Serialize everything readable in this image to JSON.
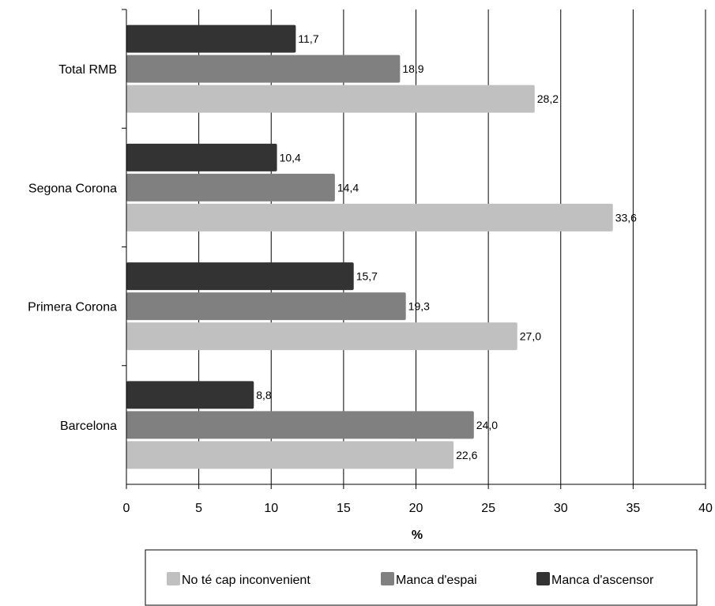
{
  "chart_data": {
    "type": "bar",
    "orientation": "horizontal",
    "categories": [
      "Total RMB",
      "Segona Corona",
      "Primera Corona",
      "Barcelona"
    ],
    "series": [
      {
        "name": "Manca d'ascensor",
        "color": "#333333",
        "values": [
          11.7,
          10.4,
          15.7,
          8.8
        ],
        "labels": [
          "11,7",
          "10,4",
          "15,7",
          "8,8"
        ]
      },
      {
        "name": "Manca d'espai",
        "color": "#808080",
        "values": [
          18.9,
          14.4,
          19.3,
          24.0
        ],
        "labels": [
          "18,9",
          "14,4",
          "19,3",
          "24,0"
        ]
      },
      {
        "name": "No té cap inconvenient",
        "color": "#c0c0c0",
        "values": [
          28.2,
          33.6,
          27.0,
          22.6
        ],
        "labels": [
          "28,2",
          "33,6",
          "27,0",
          "22,6"
        ]
      }
    ],
    "xlabel": "%",
    "xlim": [
      0,
      40
    ],
    "xticks": [
      0,
      5,
      10,
      15,
      20,
      25,
      30,
      35,
      40
    ],
    "grid": "vertical",
    "legend": {
      "placement": "bottom",
      "order": [
        "No té cap inconvenient",
        "Manca d'espai",
        "Manca d'ascensor"
      ]
    }
  }
}
